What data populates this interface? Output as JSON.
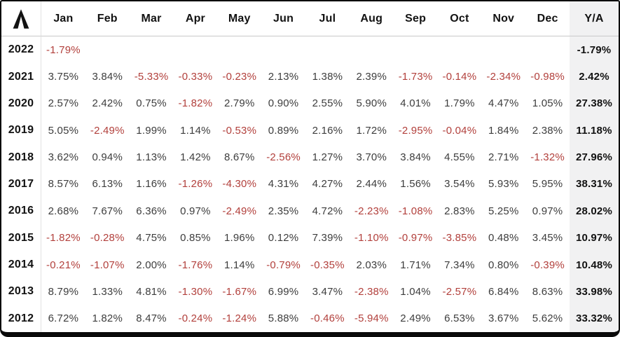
{
  "header": {
    "logo_icon": "caret-logo-icon",
    "months": [
      "Jan",
      "Feb",
      "Mar",
      "Apr",
      "May",
      "Jun",
      "Jul",
      "Aug",
      "Sep",
      "Oct",
      "Nov",
      "Dec"
    ],
    "total_label": "Y/A"
  },
  "colors": {
    "negative_text": "#b2403c",
    "positive_text": "#3d3d3d",
    "bold_text": "#121212",
    "total_column_bg": "#f1f1f2",
    "frame_border": "#0a0a0a",
    "header_rule": "#c9c9c9",
    "year_rule": "#e3e3e3"
  },
  "chart_data": {
    "type": "table",
    "title": "Monthly returns by year (%)",
    "categories": [
      "Jan",
      "Feb",
      "Mar",
      "Apr",
      "May",
      "Jun",
      "Jul",
      "Aug",
      "Sep",
      "Oct",
      "Nov",
      "Dec",
      "Y/A"
    ],
    "series": [
      {
        "year": "2022",
        "monthly": [
          -1.79,
          null,
          null,
          null,
          null,
          null,
          null,
          null,
          null,
          null,
          null,
          null
        ],
        "ya": -1.79
      },
      {
        "year": "2021",
        "monthly": [
          3.75,
          3.84,
          -5.33,
          -0.33,
          -0.23,
          2.13,
          1.38,
          2.39,
          -1.73,
          -0.14,
          -2.34,
          -0.98
        ],
        "ya": 2.42
      },
      {
        "year": "2020",
        "monthly": [
          2.57,
          2.42,
          0.75,
          -1.82,
          2.79,
          0.9,
          2.55,
          5.9,
          4.01,
          1.79,
          4.47,
          1.05
        ],
        "ya": 27.38
      },
      {
        "year": "2019",
        "monthly": [
          5.05,
          -2.49,
          1.99,
          1.14,
          -0.53,
          0.89,
          2.16,
          1.72,
          -2.95,
          -0.04,
          1.84,
          2.38
        ],
        "ya": 11.18
      },
      {
        "year": "2018",
        "monthly": [
          3.62,
          0.94,
          1.13,
          1.42,
          8.67,
          -2.56,
          1.27,
          3.7,
          3.84,
          4.55,
          2.71,
          -1.32
        ],
        "ya": 27.96
      },
      {
        "year": "2017",
        "monthly": [
          8.57,
          6.13,
          1.16,
          -1.26,
          -4.3,
          4.31,
          4.27,
          2.44,
          1.56,
          3.54,
          5.93,
          5.95
        ],
        "ya": 38.31
      },
      {
        "year": "2016",
        "monthly": [
          2.68,
          7.67,
          6.36,
          0.97,
          -2.49,
          2.35,
          4.72,
          -2.23,
          -1.08,
          2.83,
          5.25,
          0.97
        ],
        "ya": 28.02
      },
      {
        "year": "2015",
        "monthly": [
          -1.82,
          -0.28,
          4.75,
          0.85,
          1.96,
          0.12,
          7.39,
          -1.1,
          -0.97,
          -3.85,
          0.48,
          3.45
        ],
        "ya": 10.97
      },
      {
        "year": "2014",
        "monthly": [
          -0.21,
          -1.07,
          2.0,
          -1.76,
          1.14,
          -0.79,
          -0.35,
          2.03,
          1.71,
          7.34,
          0.8,
          -0.39
        ],
        "ya": 10.48
      },
      {
        "year": "2013",
        "monthly": [
          8.79,
          1.33,
          4.81,
          -1.3,
          -1.67,
          6.99,
          3.47,
          -2.38,
          1.04,
          -2.57,
          6.84,
          8.63
        ],
        "ya": 33.98
      },
      {
        "year": "2012",
        "monthly": [
          6.72,
          1.82,
          8.47,
          -0.24,
          -1.24,
          5.88,
          -0.46,
          -5.94,
          2.49,
          6.53,
          3.67,
          5.62
        ],
        "ya": 33.32
      }
    ]
  }
}
